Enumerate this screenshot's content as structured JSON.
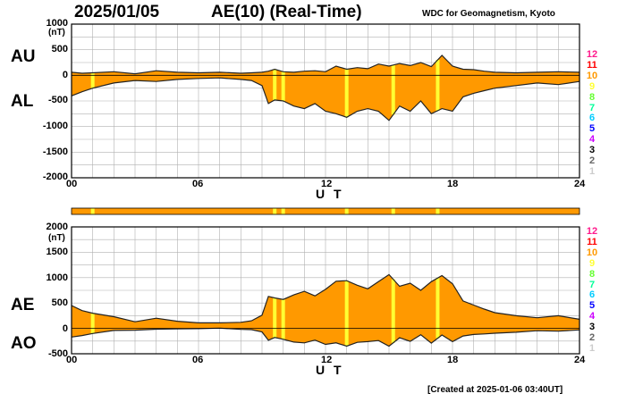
{
  "header": {
    "date": "2025/01/05",
    "title": "AE(10) (Real-Time)",
    "source": "WDC for Geomagnetism, Kyoto",
    "created": "[Created at 2025-01-06 03:40UT]"
  },
  "legend": {
    "counts": [
      "12",
      "11",
      "10",
      "9",
      "8",
      "7",
      "6",
      "5",
      "4",
      "3",
      "2",
      "1"
    ],
    "colors": [
      "#ff1a8c",
      "#ff0000",
      "#ff9900",
      "#ffff33",
      "#66ff33",
      "#00ff99",
      "#00ccff",
      "#0000ff",
      "#cc00ff",
      "#000000",
      "#666666",
      "#cccccc"
    ]
  },
  "chart_data": [
    {
      "type": "area",
      "id": "au-al",
      "series": [
        {
          "name": "AU",
          "x": [
            0,
            0.5,
            1,
            2,
            3,
            4,
            5,
            6,
            7,
            8,
            8.5,
            9,
            9.3,
            9.6,
            10,
            10.5,
            11,
            11.5,
            12,
            12.5,
            13,
            13.5,
            14,
            14.5,
            15,
            15.5,
            16,
            16.5,
            17,
            17.5,
            18,
            18.5,
            19,
            19.5,
            20,
            21,
            22,
            23,
            24
          ],
          "values": [
            60,
            40,
            50,
            70,
            30,
            90,
            60,
            50,
            60,
            40,
            50,
            60,
            80,
            120,
            70,
            60,
            80,
            90,
            70,
            180,
            120,
            150,
            130,
            220,
            180,
            230,
            190,
            250,
            170,
            390,
            180,
            120,
            110,
            80,
            60,
            50,
            60,
            70,
            60
          ]
        },
        {
          "name": "AL",
          "x": [
            0,
            0.5,
            1,
            2,
            3,
            4,
            5,
            6,
            7,
            8,
            8.5,
            9,
            9.3,
            9.6,
            10,
            10.5,
            11,
            11.5,
            12,
            12.5,
            13,
            13.5,
            14,
            14.5,
            15,
            15.5,
            16,
            16.5,
            17,
            17.5,
            18,
            18.5,
            19,
            19.5,
            20,
            21,
            22,
            23,
            24
          ],
          "values": [
            -400,
            -320,
            -250,
            -150,
            -100,
            -120,
            -80,
            -60,
            -50,
            -80,
            -100,
            -200,
            -550,
            -480,
            -500,
            -600,
            -650,
            -550,
            -700,
            -750,
            -820,
            -700,
            -650,
            -700,
            -880,
            -600,
            -700,
            -500,
            -750,
            -650,
            -700,
            -420,
            -350,
            -300,
            -250,
            -200,
            -150,
            -180,
            -120
          ]
        }
      ],
      "yticks": [
        1000,
        500,
        0,
        -500,
        -1000,
        -1500,
        -2000
      ],
      "ylabel": "(nT)",
      "ylim": [
        -2000,
        1000
      ],
      "xticks": [
        0,
        6,
        12,
        18,
        24
      ],
      "xticklabels": [
        "00",
        "06",
        "12",
        "18",
        "24"
      ],
      "xlabel": "U T",
      "xlim": [
        0,
        24
      ],
      "labels": {
        "upper": "AU",
        "lower": "AL"
      },
      "grid": true
    },
    {
      "type": "area",
      "id": "ae-ao",
      "series": [
        {
          "name": "AE",
          "x": [
            0,
            0.5,
            1,
            2,
            3,
            4,
            5,
            6,
            7,
            8,
            8.5,
            9,
            9.3,
            9.6,
            10,
            10.5,
            11,
            11.5,
            12,
            12.5,
            13,
            13.5,
            14,
            14.5,
            15,
            15.5,
            16,
            16.5,
            17,
            17.5,
            18,
            18.5,
            19,
            19.5,
            20,
            21,
            22,
            23,
            24
          ],
          "values": [
            450,
            350,
            300,
            230,
            130,
            200,
            140,
            110,
            110,
            120,
            150,
            260,
            630,
            600,
            570,
            660,
            730,
            640,
            770,
            930,
            940,
            850,
            780,
            920,
            1060,
            830,
            890,
            750,
            920,
            1040,
            880,
            540,
            460,
            380,
            310,
            250,
            210,
            250,
            180
          ]
        },
        {
          "name": "AO",
          "x": [
            0,
            0.5,
            1,
            2,
            3,
            4,
            5,
            6,
            7,
            8,
            8.5,
            9,
            9.3,
            9.6,
            10,
            10.5,
            11,
            11.5,
            12,
            12.5,
            13,
            13.5,
            14,
            14.5,
            15,
            15.5,
            16,
            16.5,
            17,
            17.5,
            18,
            18.5,
            19,
            19.5,
            20,
            21,
            22,
            23,
            24
          ],
          "values": [
            -170,
            -140,
            -100,
            -40,
            -35,
            -15,
            -10,
            -5,
            5,
            -20,
            -25,
            -70,
            -235,
            -180,
            -215,
            -270,
            -285,
            -230,
            -315,
            -285,
            -350,
            -275,
            -260,
            -240,
            -350,
            -185,
            -255,
            -125,
            -290,
            -130,
            -260,
            -150,
            -120,
            -110,
            -95,
            -75,
            -45,
            -55,
            -30
          ]
        }
      ],
      "yticks": [
        2000,
        1500,
        1000,
        500,
        0,
        -500
      ],
      "ylabel": "(nT)",
      "ylim": [
        -500,
        2000
      ],
      "xticks": [
        0,
        6,
        12,
        18,
        24
      ],
      "xticklabels": [
        "00",
        "06",
        "12",
        "18",
        "24"
      ],
      "xlabel": "U T",
      "xlim": [
        0,
        24
      ],
      "labels": {
        "upper": "AE",
        "lower": "AO"
      },
      "grid": true
    }
  ],
  "station_bar": {
    "base_color": "#ff9900",
    "drop_color": "#ffff33",
    "drop_hours": [
      1.0,
      9.6,
      10.0,
      13.0,
      15.2,
      17.3
    ]
  }
}
